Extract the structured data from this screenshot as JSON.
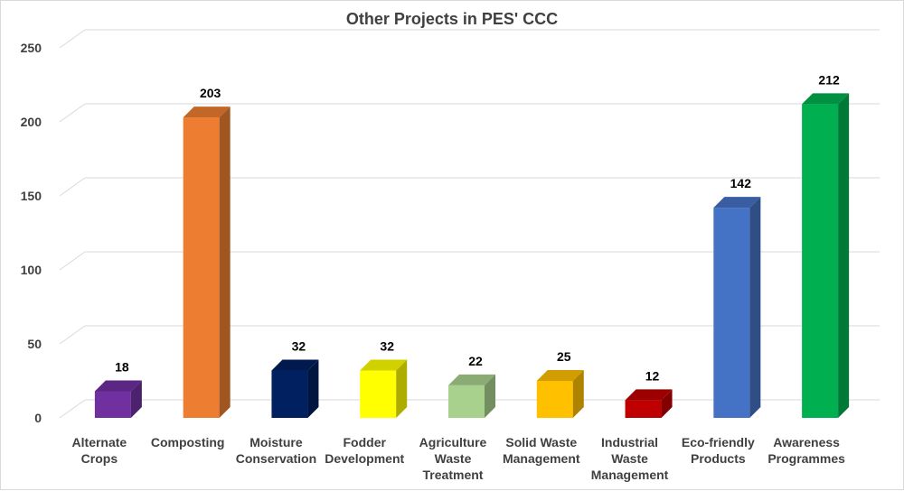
{
  "chart_data": {
    "type": "bar",
    "title": "Other Projects in PES' CCC",
    "xlabel": "",
    "ylabel": "",
    "ylim": [
      0,
      250
    ],
    "yticks": [
      0,
      50,
      100,
      150,
      200,
      250
    ],
    "grid": true,
    "legend": "none",
    "categories": [
      [
        "Alternate",
        "Crops"
      ],
      [
        "Composting"
      ],
      [
        "Moisture",
        "Conservation"
      ],
      [
        "Fodder",
        "Development"
      ],
      [
        "Agriculture",
        "Waste",
        "Treatment"
      ],
      [
        "Solid Waste",
        "Management"
      ],
      [
        "Industrial",
        "Waste",
        "Management"
      ],
      [
        "Eco-friendly",
        "Products"
      ],
      [
        "Awareness",
        "Programmes"
      ]
    ],
    "values": [
      18,
      203,
      32,
      32,
      22,
      25,
      12,
      142,
      212
    ],
    "colors": [
      "#7030A0",
      "#ED7D31",
      "#002060",
      "#FFFF00",
      "#A9D18E",
      "#FFC000",
      "#C00000",
      "#4472C4",
      "#00B050"
    ]
  }
}
